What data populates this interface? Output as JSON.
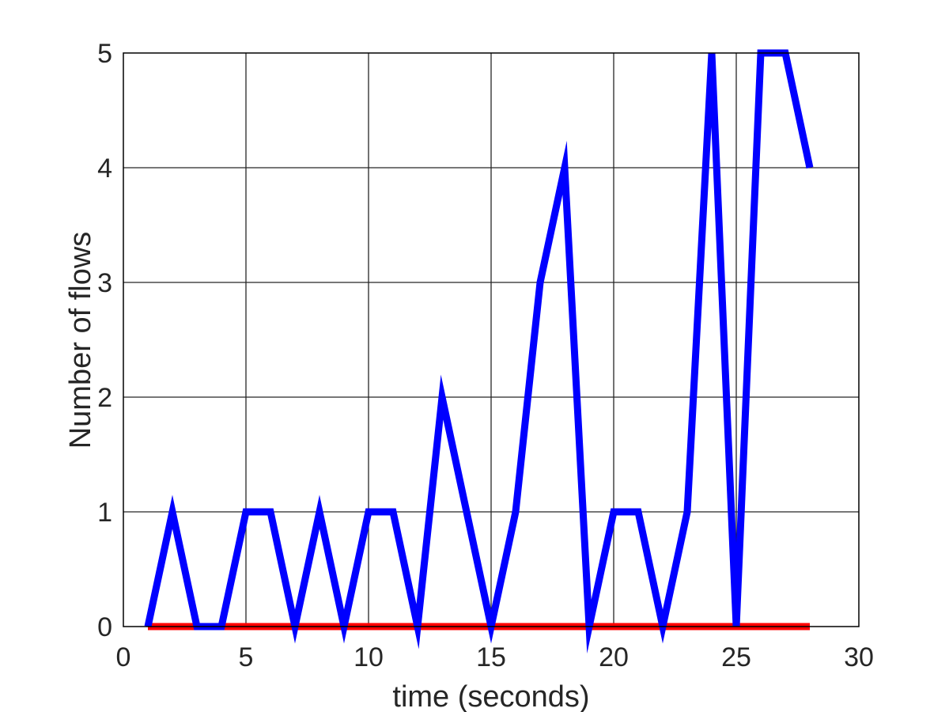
{
  "chart_data": {
    "type": "line",
    "title": "",
    "xlabel": "time (seconds)",
    "ylabel": "Number of flows",
    "xlim": [
      0,
      30
    ],
    "ylim": [
      0,
      5
    ],
    "xticks": [
      0,
      5,
      10,
      15,
      20,
      25,
      30
    ],
    "yticks": [
      0,
      1,
      2,
      3,
      4,
      5
    ],
    "grid": true,
    "legend": "none",
    "x": [
      1,
      2,
      3,
      4,
      5,
      6,
      7,
      8,
      9,
      10,
      11,
      12,
      13,
      14,
      15,
      16,
      17,
      18,
      19,
      20,
      21,
      22,
      23,
      24,
      25,
      26,
      27,
      28
    ],
    "series": [
      {
        "color": "#0000ff",
        "values": [
          0,
          1,
          0,
          0,
          1,
          1,
          0,
          1,
          0,
          1,
          1,
          0,
          2,
          1,
          0,
          1,
          3,
          4,
          0,
          1,
          1,
          0,
          1,
          5,
          0,
          5,
          5,
          4
        ]
      },
      {
        "color": "#ff0000",
        "values": [
          0,
          0,
          0,
          0,
          0,
          0,
          0,
          0,
          0,
          0,
          0,
          0,
          0,
          0,
          0,
          0,
          0,
          0,
          0,
          0,
          0,
          0,
          0,
          0,
          0,
          0,
          0,
          0
        ]
      }
    ]
  }
}
